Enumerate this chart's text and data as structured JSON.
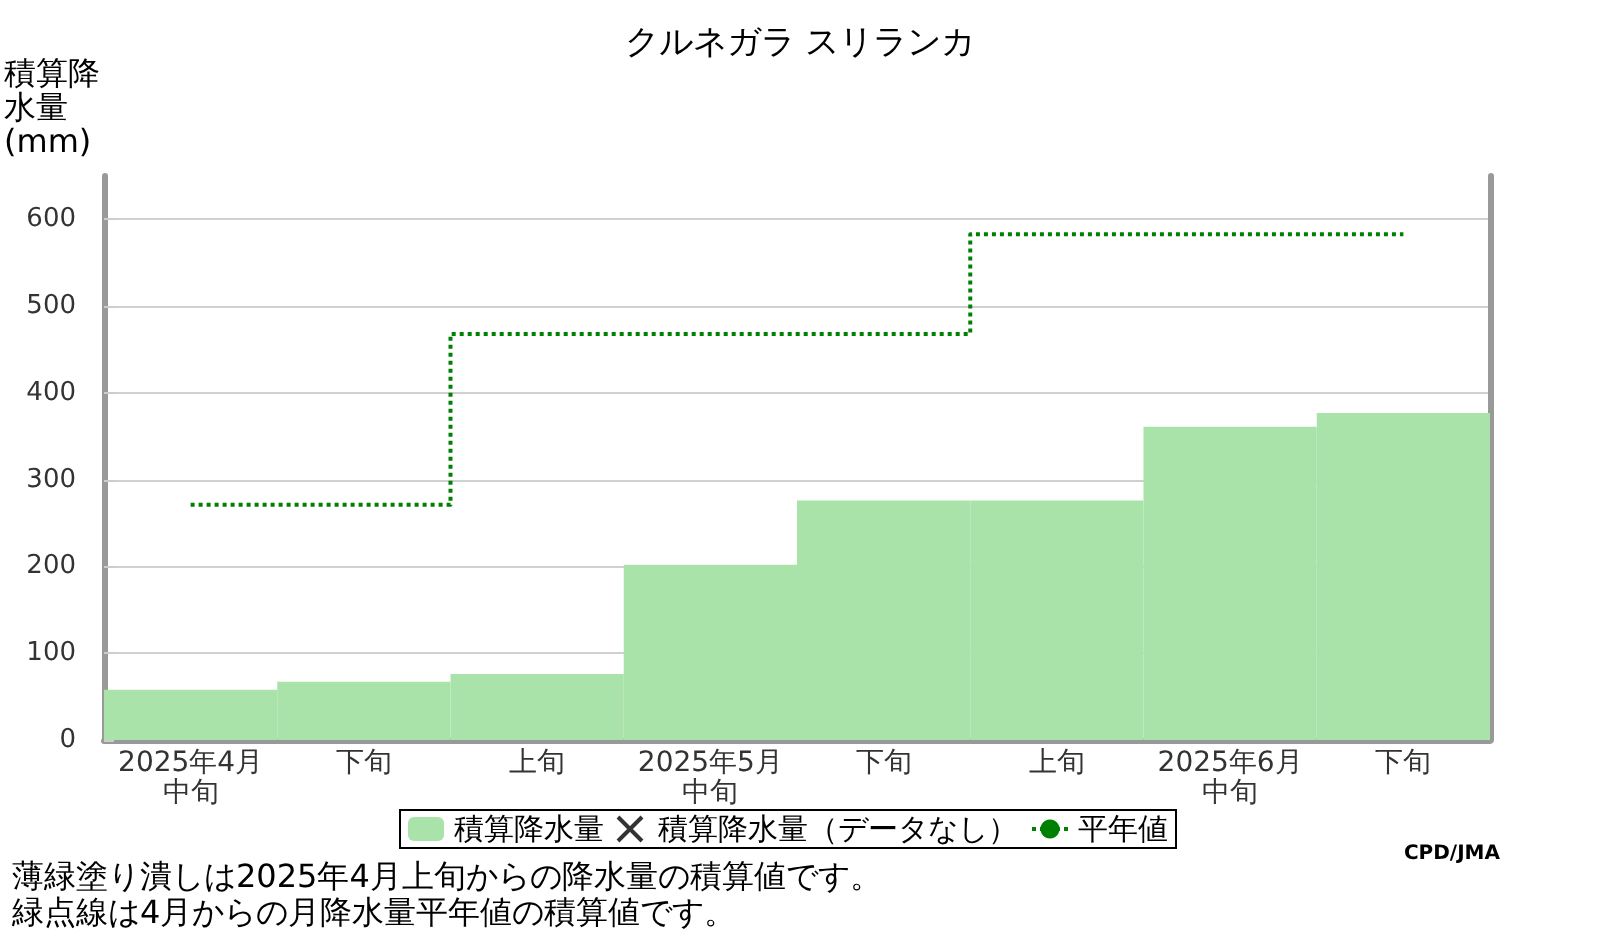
{
  "chart_data": {
    "type": "bar",
    "title": "クルネガラ スリランカ",
    "ylabel": "積算降水量(mm)",
    "categories": [
      "2025年4月中旬",
      "下旬",
      "上旬",
      "2025年5月中旬",
      "下旬",
      "上旬",
      "2025年6月中旬",
      "下旬"
    ],
    "series": [
      {
        "name": "積算降水量",
        "color": "#aae3aa",
        "values": [
          58,
          67,
          76,
          202,
          276,
          276,
          361,
          377
        ]
      },
      {
        "name": "積算降水量（データなし）",
        "type": "scatter",
        "marker": "cross",
        "color": "#000000",
        "values": [
          null,
          null,
          null,
          null,
          null,
          null,
          null,
          null
        ]
      },
      {
        "name": "平年値",
        "type": "step",
        "line_style": "dotted",
        "color": "#008000",
        "values": [
          271,
          271,
          468,
          468,
          468,
          583,
          583,
          583
        ]
      }
    ],
    "ylim": [
      0,
      650
    ],
    "yticks": [
      0,
      100,
      200,
      300,
      400,
      500,
      600
    ],
    "grid": "y",
    "legend": "bottom",
    "annotations": [
      "CPD/JMA",
      "薄緑塗り潰しは2025年4月上旬からの降水量の積算値です。",
      "緑点線は4月からの月降水量平年値の積算値です。"
    ]
  }
}
